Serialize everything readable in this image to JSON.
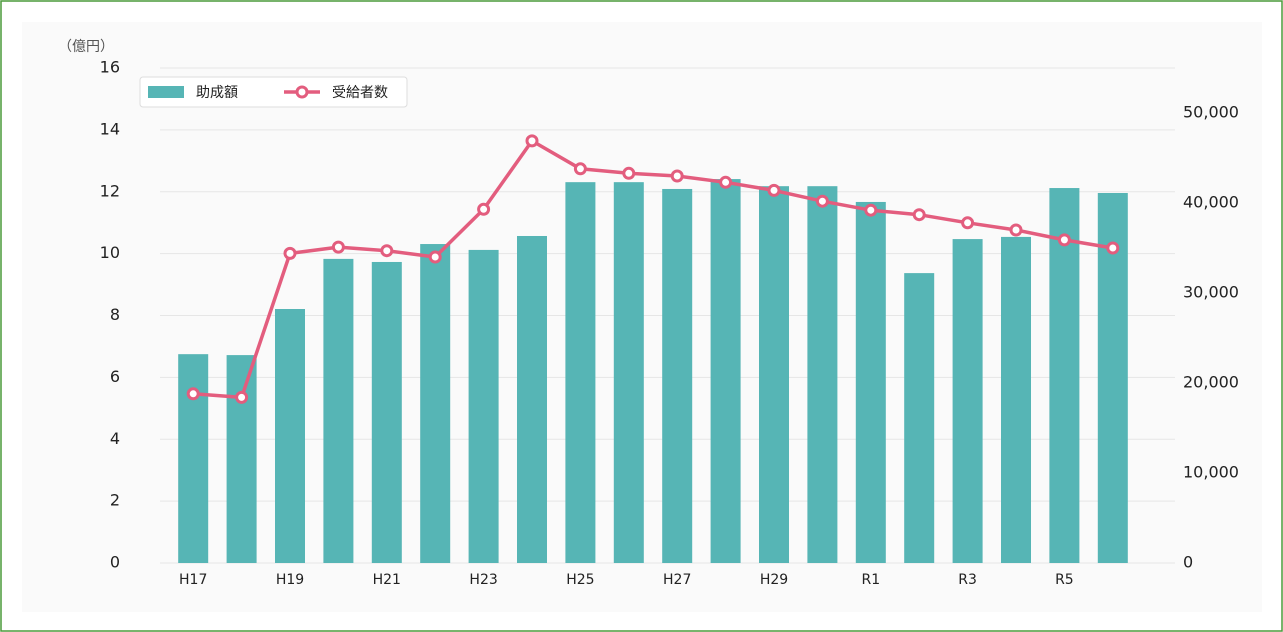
{
  "chart_data": {
    "type": "bar_line",
    "y_label": "（億円）",
    "categories": [
      "H17",
      null,
      "H19",
      null,
      "H21",
      null,
      "H23",
      null,
      "H25",
      null,
      "H27",
      null,
      "H29",
      null,
      "R1",
      null,
      "R3",
      null,
      "R5",
      null
    ],
    "series": [
      {
        "name": "助成額",
        "type": "bar",
        "color": "#56b5b5",
        "axis": "y",
        "values": [
          6.75,
          6.72,
          8.21,
          9.83,
          9.73,
          10.31,
          10.12,
          10.57,
          12.31,
          12.31,
          12.09,
          12.41,
          12.18,
          12.18,
          11.67,
          9.37,
          10.47,
          10.54,
          12.12,
          11.96
        ]
      },
      {
        "name": "受給者数",
        "type": "line",
        "color": "#e35d7e",
        "axis": "y2",
        "values": [
          18800,
          18400,
          34400,
          35100,
          34700,
          34000,
          39300,
          46900,
          43800,
          43300,
          43000,
          42300,
          41400,
          40200,
          39200,
          38700,
          37800,
          37000,
          35900,
          35000
        ]
      }
    ],
    "ylim": [
      0,
      16
    ],
    "yticks": [
      0,
      2,
      4,
      6,
      8,
      10,
      12,
      14,
      16
    ],
    "y2lim": [
      0,
      55000
    ],
    "y2ticks": [
      0,
      {
        "value": 10000,
        "label": "10,000"
      },
      {
        "value": 20000,
        "label": "20,000"
      },
      {
        "value": 30000,
        "label": "30,000"
      },
      {
        "value": 40000,
        "label": "40,000"
      },
      {
        "value": 50000,
        "label": "50,000"
      }
    ],
    "grid": true,
    "legend": "top-left"
  }
}
